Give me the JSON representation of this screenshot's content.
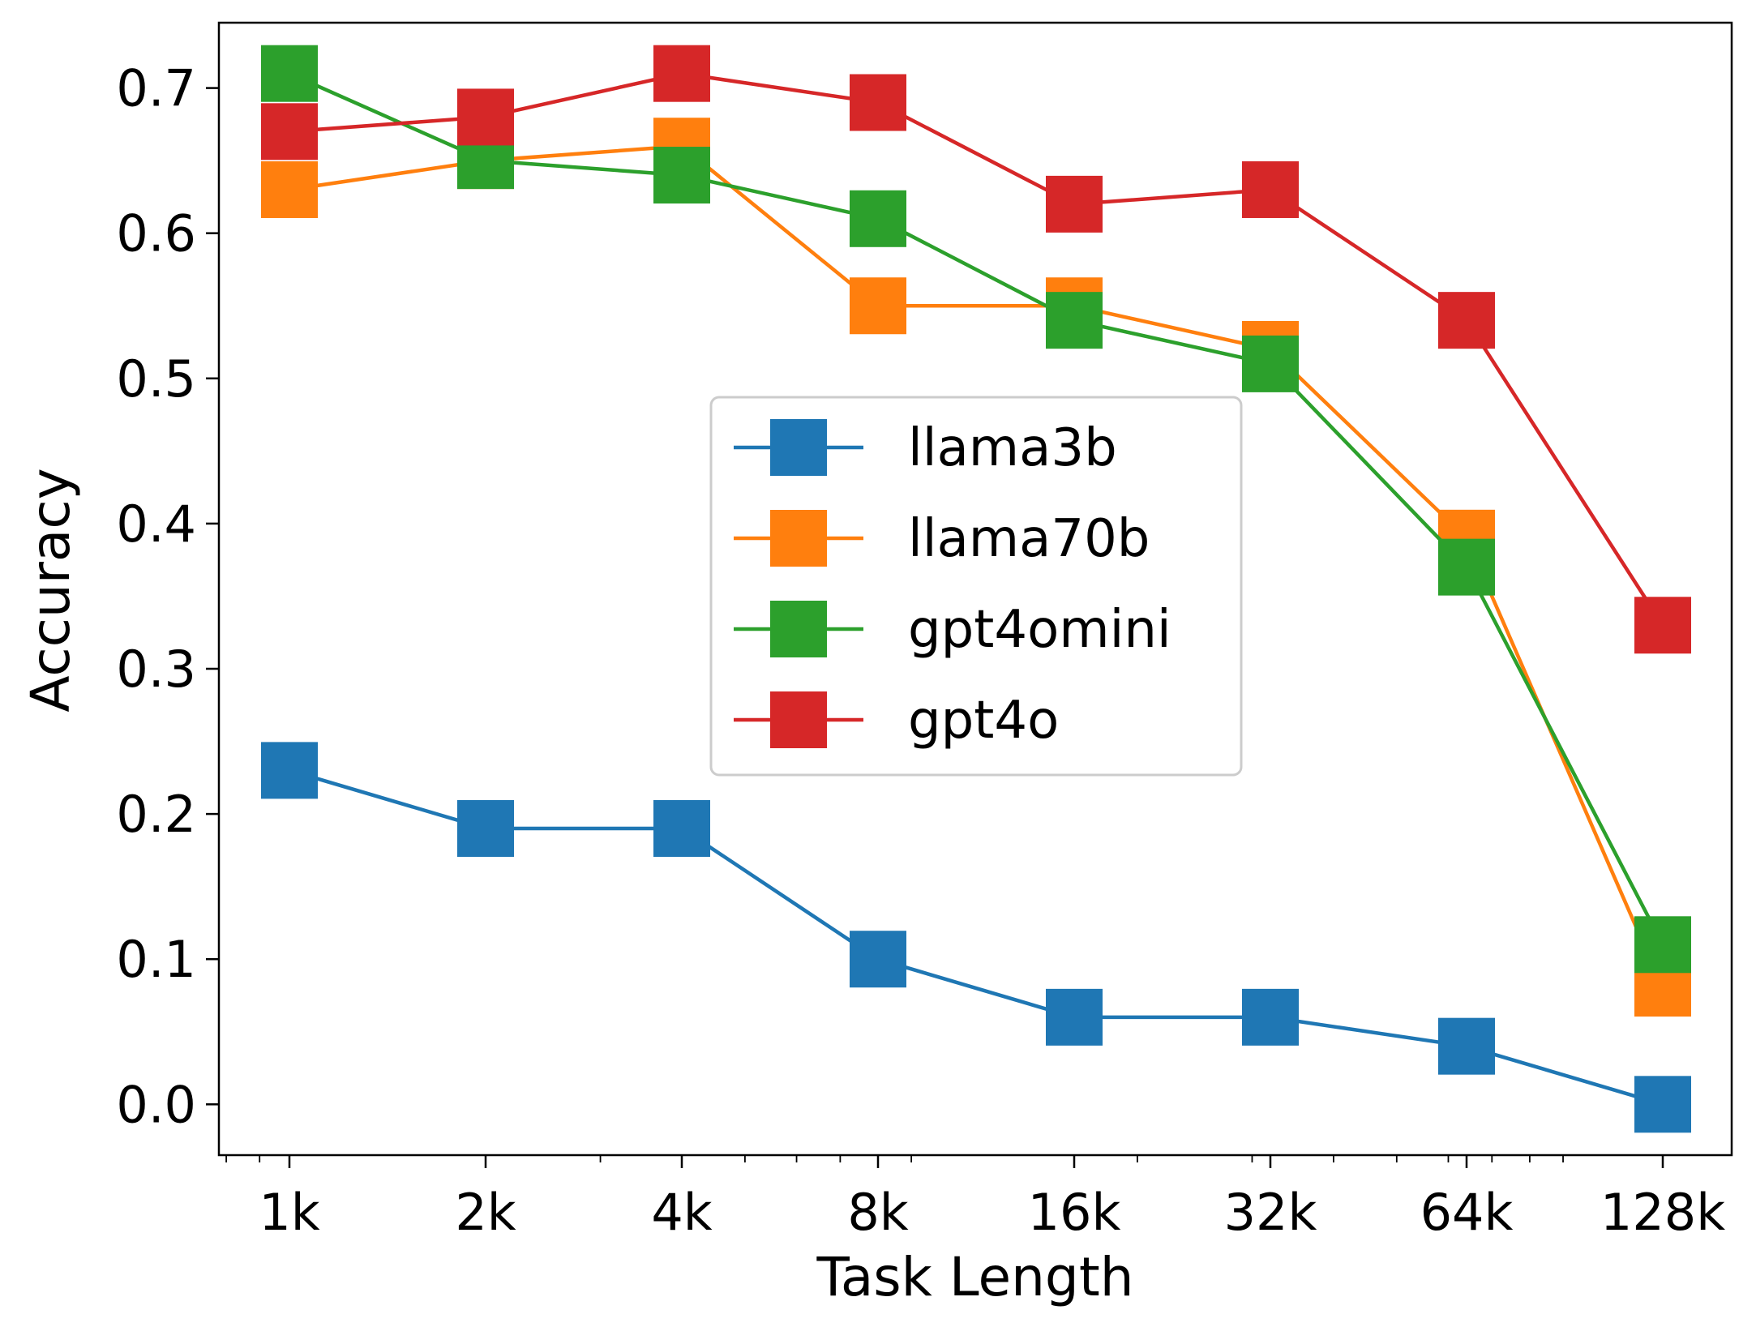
{
  "chart_data": {
    "type": "line",
    "xscale": "log2",
    "categories": [
      "1k",
      "2k",
      "4k",
      "8k",
      "16k",
      "32k",
      "64k",
      "128k"
    ],
    "x": [
      1,
      2,
      4,
      8,
      16,
      32,
      64,
      128
    ],
    "xlabel": "Task Length",
    "ylabel": "Accuracy",
    "ylim": [
      -0.035,
      0.745
    ],
    "yticks": [
      0.0,
      0.1,
      0.2,
      0.3,
      0.4,
      0.5,
      0.6,
      0.7
    ],
    "ytick_labels": [
      "0.0",
      "0.1",
      "0.2",
      "0.3",
      "0.4",
      "0.5",
      "0.6",
      "0.7"
    ],
    "grid": false,
    "legend_placement": "center",
    "marker": "square",
    "series": [
      {
        "name": "llama3b",
        "color": "#1f77b4",
        "values": [
          0.23,
          0.19,
          0.19,
          0.1,
          0.06,
          0.06,
          0.04,
          0.0
        ]
      },
      {
        "name": "llama70b",
        "color": "#ff7f0e",
        "values": [
          0.63,
          0.65,
          0.66,
          0.55,
          0.55,
          0.52,
          0.39,
          0.08
        ]
      },
      {
        "name": "gpt4omini",
        "color": "#2ca02c",
        "values": [
          0.71,
          0.65,
          0.64,
          0.61,
          0.54,
          0.51,
          0.37,
          0.11
        ]
      },
      {
        "name": "gpt4o",
        "color": "#d62728",
        "values": [
          0.67,
          0.68,
          0.71,
          0.69,
          0.62,
          0.63,
          0.54,
          0.33
        ]
      }
    ]
  }
}
